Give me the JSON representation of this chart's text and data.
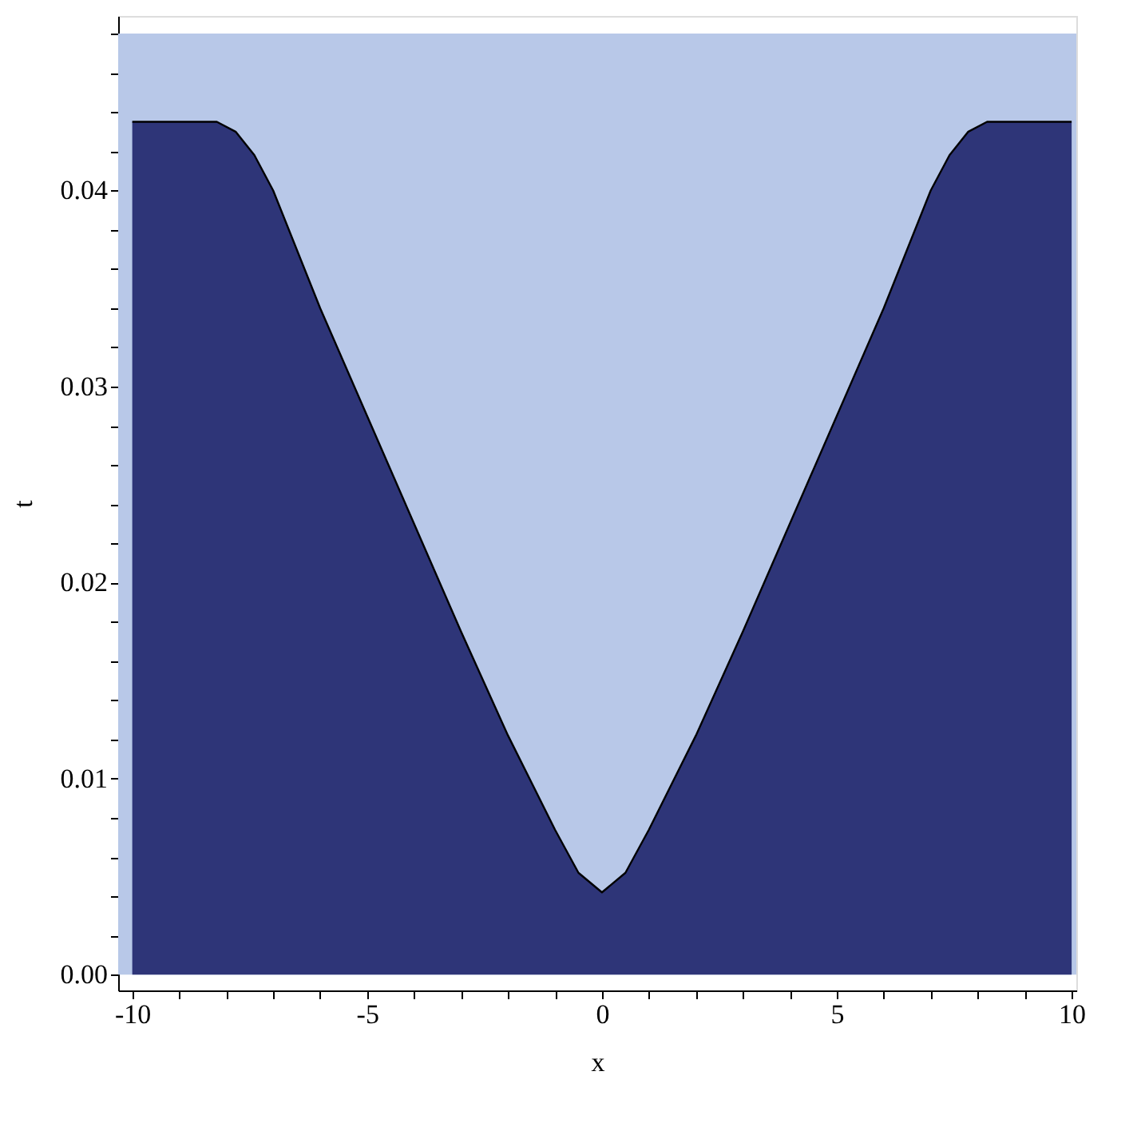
{
  "chart_data": {
    "type": "area",
    "xlabel": "x",
    "ylabel": "t",
    "x": [
      -10,
      -9,
      -8.2,
      -7.8,
      -7.4,
      -7,
      -6,
      -5,
      -4,
      -3,
      -2,
      -1.5,
      -1,
      -0.5,
      0,
      0.5,
      1,
      1.5,
      2,
      3,
      4,
      5,
      6,
      7,
      7.4,
      7.8,
      8.2,
      9,
      10
    ],
    "series": [
      {
        "color": "#2e3578",
        "values": [
          0.0435,
          0.0435,
          0.0435,
          0.043,
          0.0418,
          0.04,
          0.034,
          0.0285,
          0.023,
          0.0175,
          0.0122,
          0.0098,
          0.0074,
          0.0052,
          0.0042,
          0.0052,
          0.0074,
          0.0098,
          0.0122,
          0.0175,
          0.023,
          0.0285,
          0.034,
          0.04,
          0.0418,
          0.043,
          0.0435,
          0.0435,
          0.0435
        ]
      }
    ],
    "bands": [
      {
        "axis": "y",
        "from": 0,
        "to": 0.048,
        "color": "#b8c8e8"
      }
    ],
    "xlim": [
      -10.3,
      10.1
    ],
    "ylim": [
      -0.0008,
      0.0489
    ],
    "xticks": [
      -10,
      {
        "value": -9,
        "label": null
      },
      {
        "value": -8,
        "label": null
      },
      {
        "value": -7,
        "label": null
      },
      {
        "value": -6,
        "label": null
      },
      -5,
      {
        "value": -4,
        "label": null
      },
      {
        "value": -3,
        "label": null
      },
      {
        "value": -2,
        "label": null
      },
      {
        "value": -1,
        "label": null
      },
      0,
      {
        "value": 1,
        "label": null
      },
      {
        "value": 2,
        "label": null
      },
      {
        "value": 3,
        "label": null
      },
      {
        "value": 4,
        "label": null
      },
      5,
      {
        "value": 6,
        "label": null
      },
      {
        "value": 7,
        "label": null
      },
      {
        "value": 8,
        "label": null
      },
      {
        "value": 9,
        "label": null
      },
      10
    ],
    "yticks": [
      {
        "value": 0,
        "label": "0.00"
      },
      {
        "value": 0.002,
        "label": null
      },
      {
        "value": 0.004,
        "label": null
      },
      {
        "value": 0.006,
        "label": null
      },
      {
        "value": 0.008,
        "label": null
      },
      0.01,
      {
        "value": 0.012,
        "label": null
      },
      {
        "value": 0.014,
        "label": null
      },
      {
        "value": 0.016,
        "label": null
      },
      {
        "value": 0.018,
        "label": null
      },
      0.02,
      {
        "value": 0.022,
        "label": null
      },
      {
        "value": 0.024,
        "label": null
      },
      {
        "value": 0.026,
        "label": null
      },
      {
        "value": 0.028,
        "label": null
      },
      0.03,
      {
        "value": 0.032,
        "label": null
      },
      {
        "value": 0.034,
        "label": null
      },
      {
        "value": 0.036,
        "label": null
      },
      {
        "value": 0.038,
        "label": null
      },
      0.04,
      {
        "value": 0.042,
        "label": null
      },
      {
        "value": 0.044,
        "label": null
      },
      {
        "value": 0.046,
        "label": null
      },
      {
        "value": 0.048,
        "label": null
      }
    ],
    "grid": false
  }
}
